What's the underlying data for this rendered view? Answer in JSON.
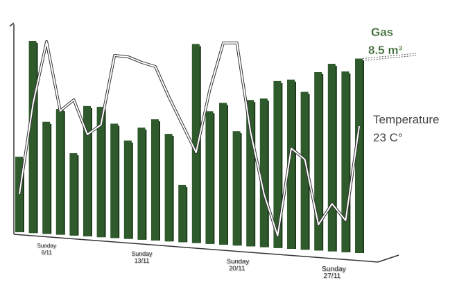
{
  "chart_data": {
    "type": "bar_line",
    "categories": [
      null,
      null,
      "Sunday 6/11",
      null,
      null,
      null,
      null,
      null,
      null,
      "Sunday 13/11",
      null,
      null,
      null,
      null,
      null,
      null,
      "Sunday 20/11",
      null,
      null,
      null,
      null,
      null,
      null,
      "Sunday 27/11",
      null,
      null
    ],
    "series": [
      {
        "name": "Gas",
        "color": "#2f5a2b",
        "type": "bar",
        "values": [
          3.3,
          8.4,
          4.9,
          5.5,
          3.6,
          5.7,
          5.7,
          5.0,
          4.3,
          4.9,
          5.3,
          4.7,
          2.5,
          8.7,
          5.8,
          6.2,
          5.0,
          6.4,
          6.5,
          7.3,
          7.4,
          6.9,
          7.8,
          8.2,
          7.9,
          8.5
        ],
        "value_labels": [
          null,
          null,
          null,
          null,
          null,
          null,
          null,
          null,
          null,
          null,
          null,
          null,
          null,
          null,
          null,
          null,
          null,
          null,
          null,
          null,
          null,
          null,
          null,
          null,
          null,
          "8.5 m³"
        ]
      },
      {
        "name": "Temperature",
        "color": "#ffffff",
        "type": "line",
        "axis": "y2",
        "values": [
          18.1,
          24.6,
          29.1,
          24.1,
          24.9,
          22.4,
          23.1,
          28.1,
          28.0,
          27.6,
          27.3,
          25.1,
          23.1,
          21.1,
          25.6,
          29.0,
          29.0,
          22.6,
          18.1,
          15.1,
          21.4,
          20.6,
          15.9,
          17.4,
          16.2,
          23
        ],
        "value_labels": [
          null,
          null,
          null,
          null,
          null,
          null,
          null,
          null,
          null,
          null,
          null,
          null,
          null,
          null,
          null,
          null,
          null,
          null,
          null,
          null,
          null,
          null,
          null,
          null,
          null,
          "23 C°"
        ]
      }
    ],
    "ylim": [
      0,
      9
    ],
    "y2lim": [
      10,
      30
    ]
  }
}
